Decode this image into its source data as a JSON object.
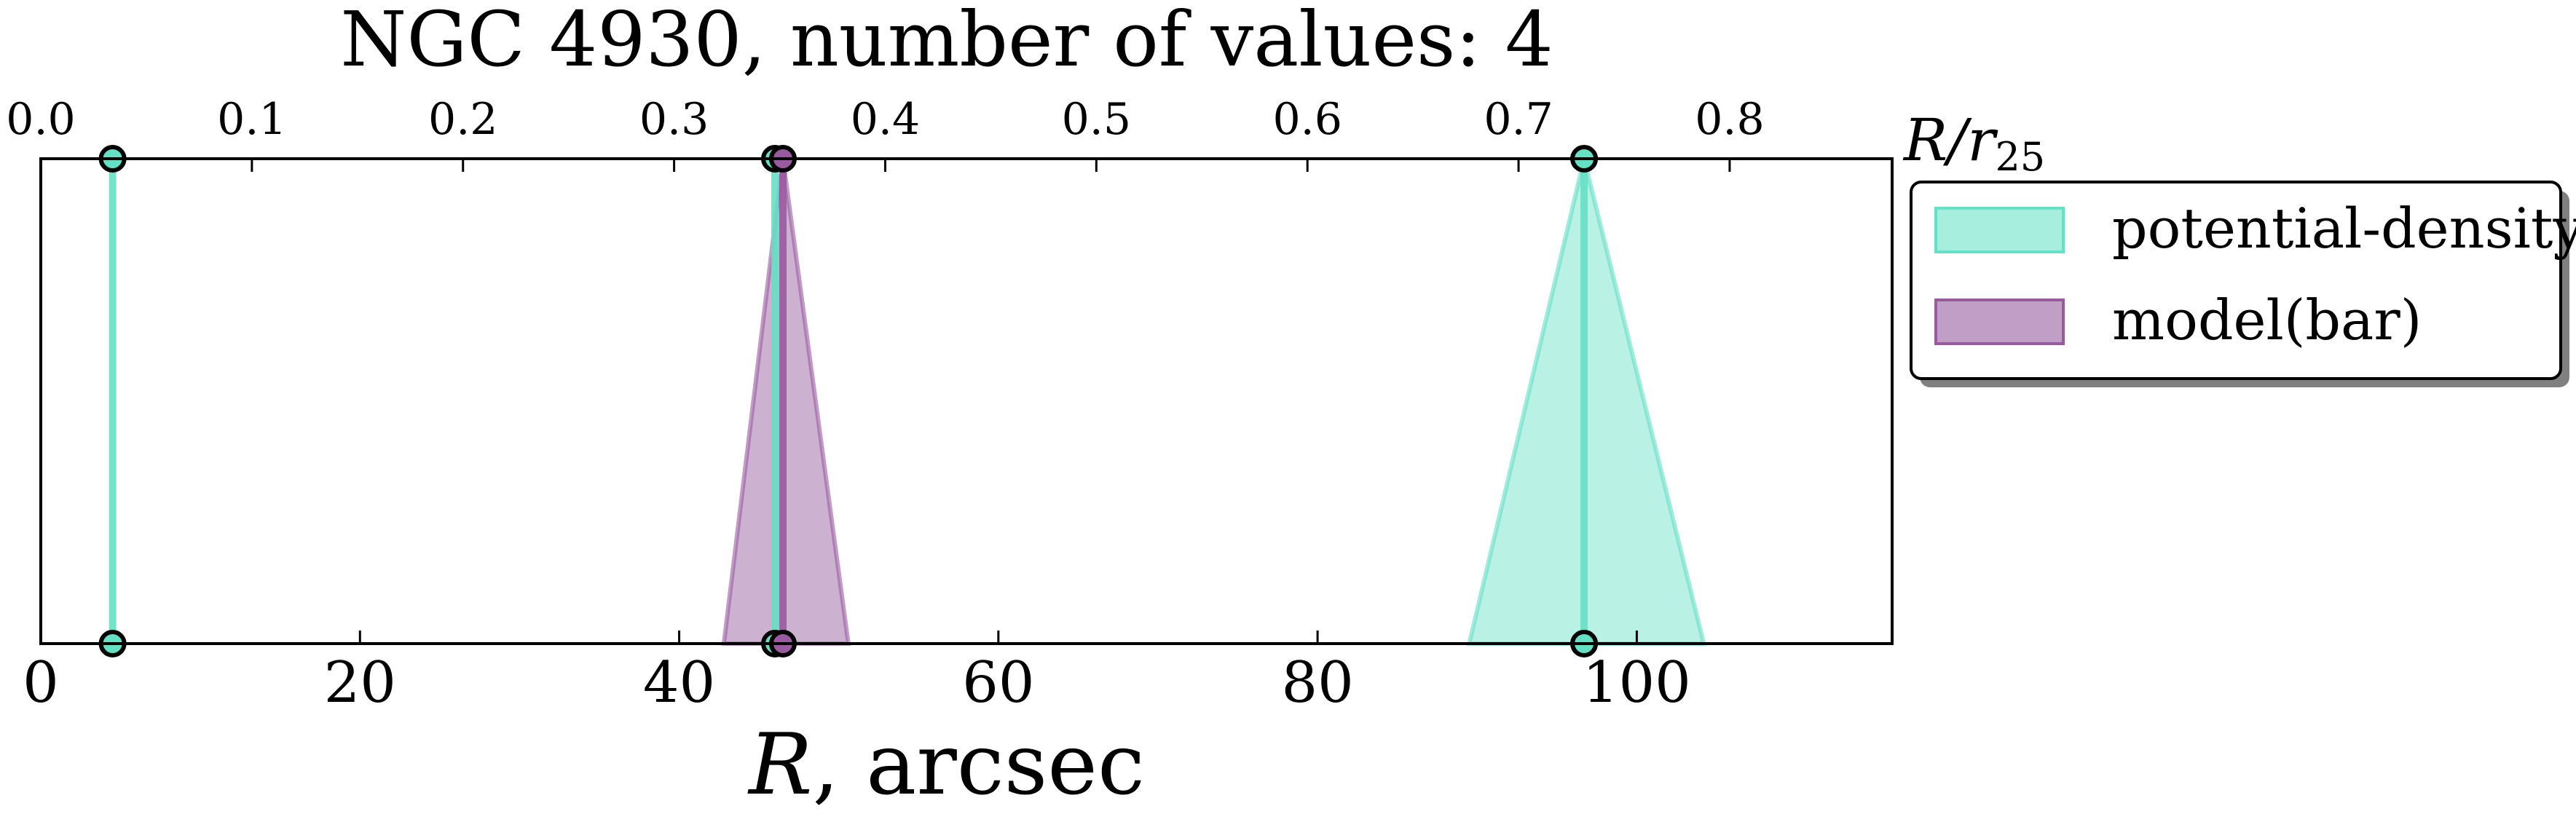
{
  "chart_data": {
    "type": "line",
    "title": "NGC 4930, number of values: 4",
    "xlabel_main": "R",
    "xlabel_unit": ", arcsec",
    "top_axis_label": "R/r",
    "top_axis_label_sub": "25",
    "xlim": [
      0,
      116
    ],
    "top_axis_ratio": 0.00756,
    "bottom_ticks": [
      0,
      20,
      40,
      60,
      80,
      100
    ],
    "top_ticks": [
      "0.0",
      "0.1",
      "0.2",
      "0.3",
      "0.4",
      "0.5",
      "0.6",
      "0.7",
      "0.8"
    ],
    "legend_position": "outside-right-top",
    "series": [
      {
        "name": "potential-density",
        "color": "#64e0c4",
        "fill": "#a8eedf",
        "values": [
          {
            "x": 4.5,
            "low": 4.5,
            "high": 4.5
          },
          {
            "x": 46.0,
            "low": 46.0,
            "high": 46.0
          },
          {
            "x": 96.7,
            "low": 89.5,
            "high": 104.2
          }
        ]
      },
      {
        "name": "model(bar)",
        "color": "#9a5aa0",
        "fill": "#c09ec6",
        "values": [
          {
            "x": 46.5,
            "low": 42.8,
            "high": 50.6
          }
        ]
      }
    ]
  }
}
